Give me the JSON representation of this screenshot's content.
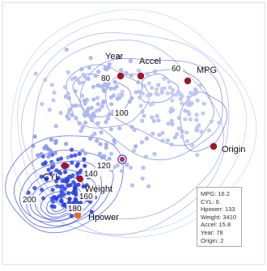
{
  "chart_data": {
    "type": "scatter",
    "title": "",
    "variables": [
      {
        "name": "Year",
        "color": "#a01828"
      },
      {
        "name": "Accel",
        "color": "#a01828"
      },
      {
        "name": "MPG",
        "color": "#a01828"
      },
      {
        "name": "Origin",
        "color": "#a01828"
      },
      {
        "name": "CYL",
        "color": "#a01828"
      },
      {
        "name": "Weight",
        "color": "#a01828"
      },
      {
        "name": "Hpower",
        "color": "#e07020"
      }
    ],
    "contour_levels": [
      "200",
      "180",
      "160",
      "140",
      "120",
      "100",
      "80",
      "60"
    ],
    "selected_point": {
      "fields": [
        {
          "label": "MPG",
          "value": "16.2"
        },
        {
          "label": "CYL",
          "value": "6"
        },
        {
          "label": "Hpower",
          "value": "133"
        },
        {
          "label": "Weight",
          "value": "3410"
        },
        {
          "label": "Accel",
          "value": "15.8"
        },
        {
          "label": "Year",
          "value": "78"
        },
        {
          "label": "Origin",
          "value": "2"
        }
      ]
    },
    "point_color": "#4a5ee8",
    "selected_color": "#2c3ed8",
    "contour_color": "#5a6ae0",
    "grid": false,
    "legend": "none"
  }
}
